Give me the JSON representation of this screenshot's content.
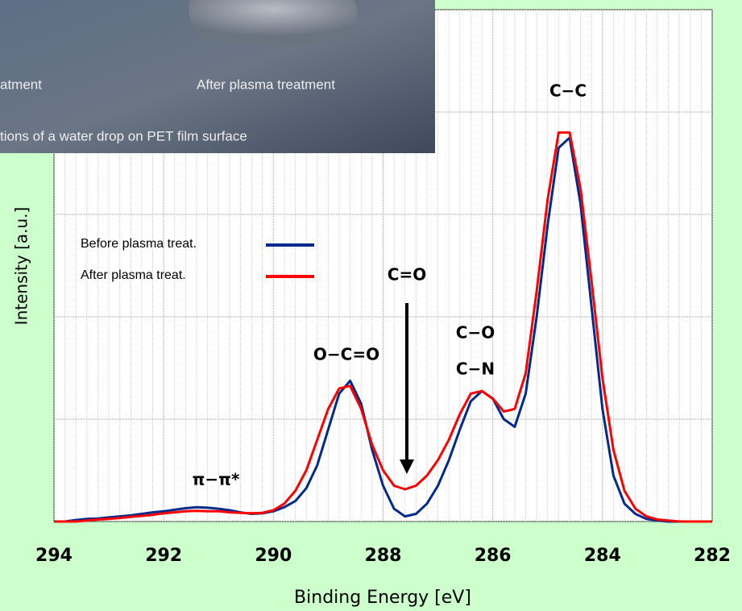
{
  "chart_data": {
    "type": "line",
    "x_label": "Binding Energy [eV]",
    "y_label": "Intensity [a.u.]",
    "xlim": [
      294,
      282
    ],
    "xticks": [
      294,
      292,
      290,
      288,
      286,
      284,
      282
    ],
    "ylim": [
      0,
      100
    ],
    "yticks": [
      0,
      20,
      40,
      60,
      80,
      100
    ],
    "y_tick_labels": false,
    "grid": true,
    "x": [
      294,
      293.8,
      293.6,
      293.4,
      293.2,
      293,
      292.8,
      292.6,
      292.4,
      292.2,
      292,
      291.8,
      291.6,
      291.4,
      291.2,
      291,
      290.8,
      290.6,
      290.4,
      290.2,
      290,
      289.8,
      289.6,
      289.4,
      289.2,
      289,
      288.8,
      288.6,
      288.4,
      288.2,
      288,
      287.8,
      287.6,
      287.4,
      287.2,
      287,
      286.8,
      286.6,
      286.4,
      286.2,
      286,
      285.8,
      285.6,
      285.4,
      285.2,
      285,
      284.8,
      284.6,
      284.4,
      284.2,
      284,
      283.8,
      283.6,
      283.4,
      283.2,
      283,
      282.8,
      282.6,
      282.4,
      282.2,
      282
    ],
    "series": [
      {
        "name": "Before plasma treat.",
        "color": "#002a8c",
        "values": [
          0,
          0,
          0.3,
          0.5,
          0.6,
          0.8,
          1,
          1.2,
          1.5,
          1.8,
          2,
          2.3,
          2.6,
          2.8,
          2.7,
          2.5,
          2.2,
          1.8,
          1.5,
          1.6,
          2,
          2.8,
          4,
          6.5,
          11,
          18,
          25,
          27.5,
          23,
          14,
          7,
          2.5,
          1,
          1.5,
          3.5,
          7,
          12,
          18,
          23.5,
          25.5,
          24,
          20,
          18.5,
          25,
          40,
          58,
          73,
          75,
          62,
          42,
          22,
          9,
          3.5,
          1.5,
          0.5,
          0.2,
          0,
          0,
          0,
          0,
          0
        ]
      },
      {
        "name": "After plasma treat.",
        "color": "#ff0000",
        "values": [
          0,
          0,
          0,
          0.2,
          0.4,
          0.5,
          0.7,
          0.9,
          1.1,
          1.3,
          1.6,
          1.8,
          2,
          2.1,
          2,
          2,
          1.8,
          1.7,
          1.6,
          1.7,
          2.2,
          3.5,
          6,
          10,
          16,
          22,
          26,
          26.5,
          22,
          15,
          10,
          7,
          6.3,
          7,
          9,
          12,
          16,
          21,
          25,
          25.5,
          24,
          21.5,
          22,
          29,
          45,
          63,
          76,
          76,
          65,
          47,
          28,
          14,
          6,
          2.5,
          1,
          0.4,
          0.2,
          0,
          0,
          0,
          0
        ]
      }
    ],
    "annotations": [
      "C−C",
      "C=O",
      "C−O",
      "C−N",
      "O−C=O",
      "π−π*"
    ],
    "overlay": {
      "captions": [
        "atment",
        "After plasma treatment"
      ],
      "footer": "tions of a water drop on PET film surface"
    }
  }
}
